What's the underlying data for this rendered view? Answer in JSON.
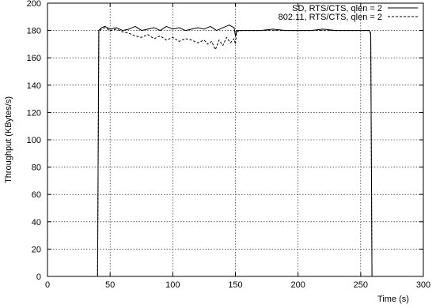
{
  "chart_data": {
    "type": "line",
    "title": "",
    "xlabel": "Time (s)",
    "ylabel": "Throughput (KBytes/s)",
    "xlim": [
      0,
      300
    ],
    "ylim": [
      0,
      200
    ],
    "x_ticks": [
      0,
      50,
      100,
      150,
      200,
      250,
      300
    ],
    "y_ticks": [
      0,
      20,
      40,
      60,
      80,
      100,
      120,
      140,
      160,
      180,
      200
    ],
    "x_tick_labels": [
      "0",
      "50",
      "100",
      "150",
      "200",
      "250",
      "300"
    ],
    "y_tick_labels": [
      "0",
      "20",
      "40",
      "60",
      "80",
      "100",
      "120",
      "140",
      "160",
      "180",
      "200"
    ],
    "grid": true,
    "legend_position": "top-right",
    "series": [
      {
        "name": "SD, RTS/CTS, qlen = 2",
        "style": "solid",
        "color": "#000000",
        "x": [
          0,
          40,
          41,
          43,
          46,
          50,
          55,
          60,
          65,
          70,
          75,
          80,
          85,
          90,
          95,
          100,
          105,
          110,
          115,
          120,
          125,
          130,
          135,
          140,
          145,
          149,
          150,
          151,
          155,
          160,
          170,
          180,
          190,
          200,
          210,
          220,
          230,
          240,
          250,
          255,
          257,
          258,
          259,
          260
        ],
        "y": [
          0,
          0,
          180,
          182,
          183,
          181,
          182,
          180,
          181,
          183,
          180,
          181,
          182,
          180,
          183,
          181,
          182,
          180,
          181,
          182,
          181,
          183,
          180,
          182,
          184,
          182,
          176,
          180,
          180,
          180,
          180,
          181,
          180,
          180,
          180,
          181,
          180,
          180,
          180,
          180,
          180,
          178,
          0,
          0
        ]
      },
      {
        "name": "802.11, RTS/CTS, qlen = 2",
        "style": "dashed",
        "color": "#000000",
        "x": [
          0,
          40,
          41,
          43,
          46,
          50,
          55,
          60,
          65,
          70,
          75,
          80,
          85,
          90,
          95,
          100,
          105,
          110,
          115,
          120,
          125,
          128,
          131,
          134,
          137,
          140,
          143,
          146,
          149,
          150,
          151,
          155,
          160,
          170,
          180,
          190,
          200,
          210,
          220,
          230,
          240,
          250,
          255,
          257,
          258,
          259,
          260
        ],
        "y": [
          0,
          0,
          179,
          181,
          182,
          180,
          181,
          179,
          178,
          176,
          175,
          177,
          174,
          176,
          173,
          175,
          172,
          174,
          173,
          171,
          173,
          170,
          172,
          166,
          173,
          169,
          175,
          171,
          174,
          170,
          179,
          180,
          180,
          180,
          180,
          180,
          180,
          180,
          180,
          180,
          180,
          180,
          180,
          180,
          177,
          0,
          0
        ]
      }
    ]
  }
}
